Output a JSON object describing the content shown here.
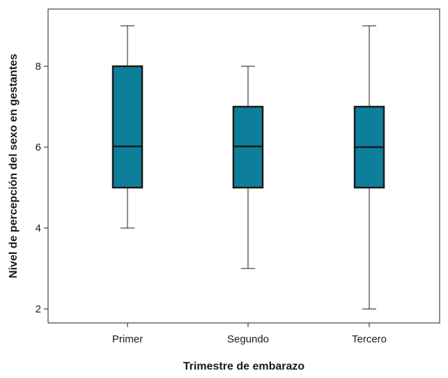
{
  "chart_data": {
    "type": "box",
    "title": "",
    "xlabel": "Trimestre de embarazo",
    "ylabel": "Nivel de percepción del sexo en gestantes",
    "ylim": [
      1.7,
      9.4
    ],
    "yticks": [
      2,
      4,
      6,
      8
    ],
    "categories": [
      "Primer",
      "Segundo",
      "Tercero"
    ],
    "boxes": [
      {
        "category": "Primer",
        "min": 4,
        "q1": 5,
        "median": 6.02,
        "q3": 8,
        "max": 9
      },
      {
        "category": "Segundo",
        "min": 3,
        "q1": 5,
        "median": 6.02,
        "q3": 7,
        "max": 8
      },
      {
        "category": "Tercero",
        "min": 2,
        "q1": 5,
        "median": 6.0,
        "q3": 7,
        "max": 9
      }
    ],
    "grid": false,
    "legend": "none",
    "box_color": "#0e7f9b",
    "edge_color": "#1a1a1a"
  }
}
